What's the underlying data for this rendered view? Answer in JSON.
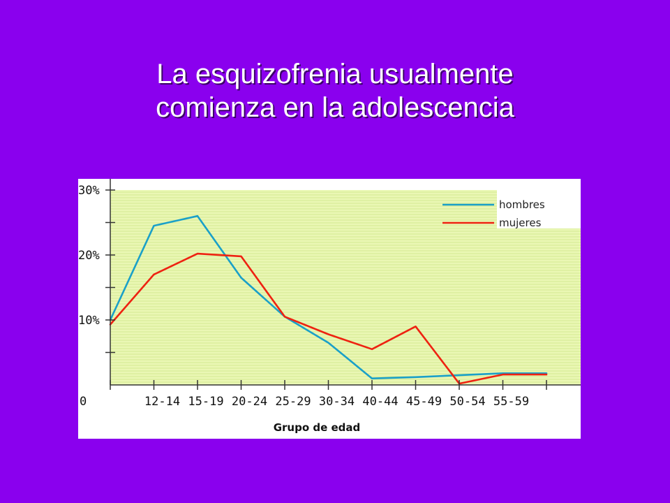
{
  "title": {
    "line1": "La esquizofrenia usualmente",
    "line2": "comienza en la adolescencia"
  },
  "colors": {
    "background": "#8a00ee",
    "plot_area": "#eaf7b4",
    "hombres": "#1aa0c8",
    "mujeres": "#ee2211"
  },
  "chart_data": {
    "type": "line",
    "title": "",
    "xlabel": "Grupo de edad",
    "ylabel": "",
    "x_origin_label": "0",
    "categories": [
      "12-14",
      "15-19",
      "20-24",
      "25-29",
      "30-34",
      "40-44",
      "45-49",
      "50-54",
      "55-59"
    ],
    "y_tick_labels": [
      "10%",
      "20%",
      "30%"
    ],
    "ylim": [
      0,
      30
    ],
    "grid": true,
    "legend_position": "top-right",
    "series": [
      {
        "name": "hombres",
        "x": [
          0,
          1,
          2,
          3,
          4,
          5,
          6,
          7,
          8,
          9,
          10
        ],
        "y": [
          10,
          24.5,
          26,
          16.5,
          10.5,
          6.5,
          1,
          1.2,
          1.5,
          1.8,
          1.8
        ]
      },
      {
        "name": "mujeres",
        "x": [
          0,
          1,
          2,
          3,
          4,
          5,
          6,
          7,
          8,
          9,
          10
        ],
        "y": [
          9.3,
          17,
          20.2,
          19.8,
          10.5,
          7.8,
          5.5,
          9,
          0.2,
          1.6,
          1.6
        ]
      }
    ]
  }
}
